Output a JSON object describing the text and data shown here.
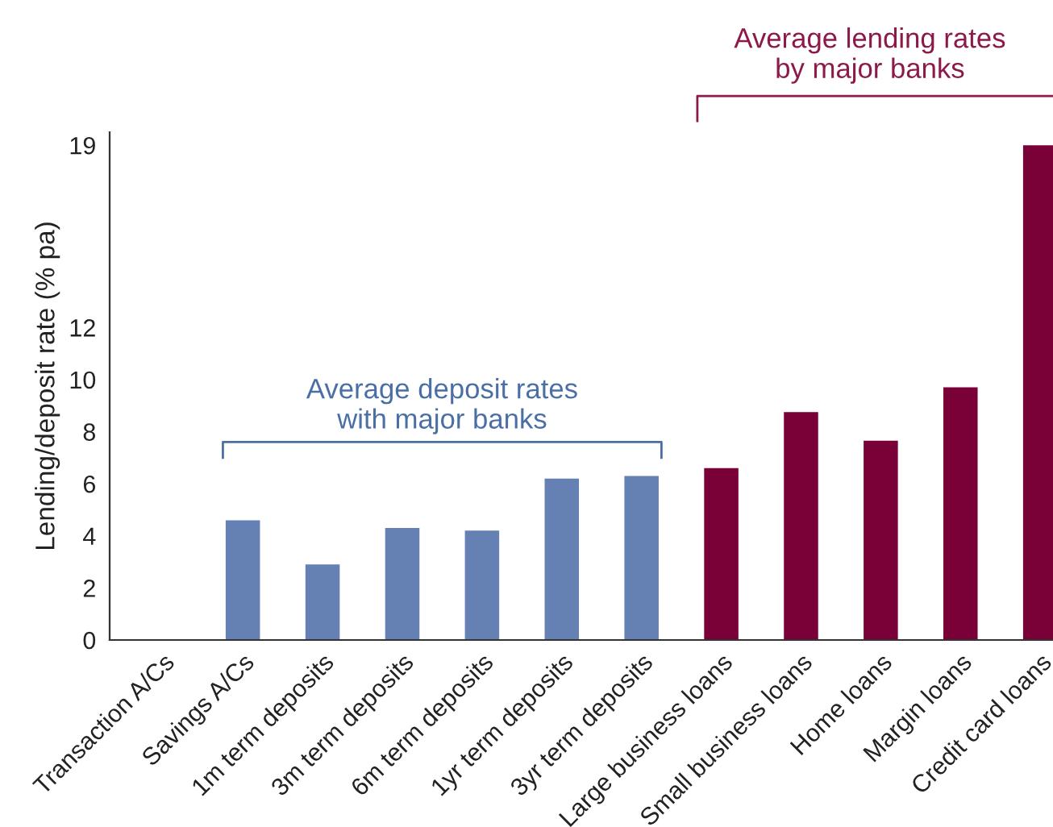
{
  "chart_data": {
    "type": "bar",
    "categories": [
      "Transaction A/Cs",
      "Savings A/Cs",
      "1m term deposits",
      "3m term deposits",
      "6m term deposits",
      "1yr term deposits",
      "3yr term deposits",
      "Large business loans",
      "Small business loans",
      "Home loans",
      "Margin loans",
      "Credit card loans"
    ],
    "values": [
      0,
      4.6,
      2.9,
      4.3,
      4.2,
      6.2,
      6.3,
      6.6,
      8.75,
      7.65,
      9.7,
      19
    ],
    "colors": [
      "#6580b3",
      "#6580b3",
      "#6580b3",
      "#6580b3",
      "#6580b3",
      "#6580b3",
      "#6580b3",
      "#7a0038",
      "#7a0038",
      "#7a0038",
      "#7a0038",
      "#7a0038"
    ],
    "ylim": [
      0,
      19.5
    ],
    "yticks": [
      0,
      2,
      4,
      6,
      8,
      10,
      12,
      19
    ],
    "ylabel": "Lending/deposit rate (% pa)",
    "grid": false,
    "legend": false,
    "annotations": [
      "Average deposit rates\nwith major banks",
      "Average lending rates\nby major banks"
    ]
  }
}
